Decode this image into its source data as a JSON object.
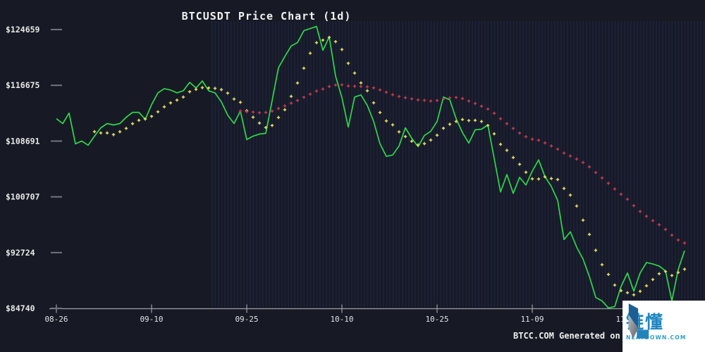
{
  "watermark": "BTCC.COM Generated on",
  "logo": {
    "cn_text": "链懂",
    "site_text": "NEATDOWN.COM"
  },
  "colors": {
    "background": "#171a24",
    "stripe": "#1e2442",
    "close_line": "#2ed84b",
    "ma7": "#e0dc66",
    "ma30": "#c03a50",
    "axis": "#9aa0a8",
    "tick_dash": "#70757e",
    "label_text": "#e8e8e8",
    "logo_blue": "#1e86c0"
  },
  "chart_data": {
    "type": "line",
    "title": "BTCUSDT Price Chart (1d)",
    "xlabel": "",
    "ylabel": "",
    "grid": "vertical-stripes",
    "legend_position": "none",
    "ylim": [
      84740,
      124659
    ],
    "y_ticks": [
      124659,
      116675,
      108691,
      100707,
      92724,
      84740
    ],
    "y_tick_labels": [
      "$124659",
      "$116675",
      "$108691",
      "$100707",
      "$92724",
      "$84740"
    ],
    "x_tick_indices": [
      0,
      15,
      30,
      45,
      60,
      75,
      90
    ],
    "x_tick_labels": [
      "08-26",
      "09-10",
      "09-25",
      "10-10",
      "10-25",
      "11-09",
      "11-24"
    ],
    "dates": [
      "08-26",
      "08-27",
      "08-28",
      "08-29",
      "08-30",
      "08-31",
      "09-01",
      "09-02",
      "09-03",
      "09-04",
      "09-05",
      "09-06",
      "09-07",
      "09-08",
      "09-09",
      "09-10",
      "09-11",
      "09-12",
      "09-13",
      "09-14",
      "09-15",
      "09-16",
      "09-17",
      "09-18",
      "09-19",
      "09-20",
      "09-21",
      "09-22",
      "09-23",
      "09-24",
      "09-25",
      "09-26",
      "09-27",
      "09-28",
      "09-29",
      "09-30",
      "10-01",
      "10-02",
      "10-03",
      "10-04",
      "10-05",
      "10-06",
      "10-07",
      "10-08",
      "10-09",
      "10-10",
      "10-11",
      "10-12",
      "10-13",
      "10-14",
      "10-15",
      "10-16",
      "10-17",
      "10-18",
      "10-19",
      "10-20",
      "10-21",
      "10-22",
      "10-23",
      "10-24",
      "10-25",
      "10-26",
      "10-27",
      "10-28",
      "10-29",
      "10-30",
      "10-31",
      "11-01",
      "11-02",
      "11-03",
      "11-04",
      "11-05",
      "11-06",
      "11-07",
      "11-08",
      "11-09",
      "11-10",
      "11-11",
      "11-12",
      "11-13",
      "11-14",
      "11-15",
      "11-16",
      "11-17",
      "11-18",
      "11-19",
      "11-20",
      "11-21",
      "11-22",
      "11-23",
      "11-24",
      "11-25",
      "11-26",
      "11-27",
      "11-28",
      "11-29",
      "11-30",
      "12-01",
      "12-02",
      "12-03"
    ],
    "series": [
      {
        "name": "Close",
        "type": "line",
        "color": "#2ed84b",
        "values": [
          111900,
          111200,
          112700,
          108300,
          108700,
          108100,
          109400,
          110600,
          111200,
          111000,
          111200,
          112100,
          112800,
          112800,
          111800,
          113900,
          115600,
          116200,
          116000,
          115600,
          115900,
          117100,
          116300,
          117300,
          115900,
          115600,
          114300,
          112400,
          111200,
          113000,
          108900,
          109400,
          109700,
          109800,
          114500,
          119200,
          120800,
          122300,
          122800,
          124500,
          124800,
          125100,
          121700,
          123600,
          118000,
          114900,
          110700,
          115000,
          115300,
          113800,
          111500,
          108300,
          106500,
          106700,
          108000,
          110600,
          109100,
          107900,
          109500,
          110100,
          111500,
          115000,
          114600,
          111900,
          109900,
          108400,
          110300,
          110400,
          111000,
          106200,
          101400,
          103900,
          101200,
          103500,
          102400,
          104400,
          106000,
          103600,
          102200,
          100200,
          94600,
          95700,
          93500,
          91800,
          89300,
          86300,
          85800,
          84800,
          85000,
          87900,
          89800,
          87200,
          89800,
          91300,
          91100,
          90800,
          90100,
          85800,
          90300,
          93000
        ]
      },
      {
        "name": "MA7",
        "type": "plus-dots",
        "derived": "moving-average",
        "window": 7,
        "source": "Close",
        "color": "#e0dc66"
      },
      {
        "name": "MA30",
        "type": "plus-dots",
        "derived": "moving-average",
        "window": 30,
        "source": "Close",
        "color": "#c03a50"
      }
    ]
  }
}
